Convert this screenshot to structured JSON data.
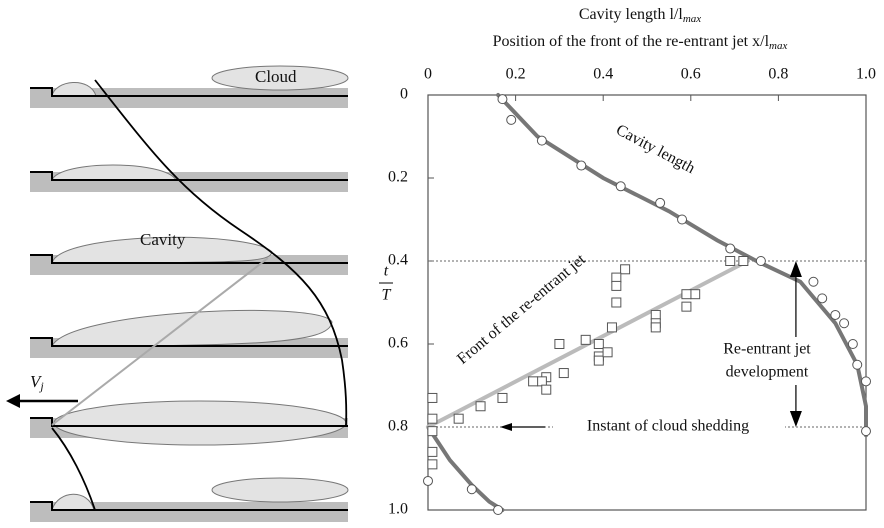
{
  "chart_data": {
    "type": "scatter",
    "title": {
      "text": "Cavity length l/l",
      "sub": "max"
    },
    "subtitle": {
      "text": "Position of the front of the re-entrant jet x/l",
      "sub": "max"
    },
    "ylabel": {
      "num": "t",
      "den": "T"
    },
    "xlim": [
      0,
      1
    ],
    "ylim": [
      0,
      1
    ],
    "y_inverted": true,
    "x_axis_position": "top",
    "xticks": [
      0,
      0.2,
      0.4,
      0.6,
      0.8,
      {
        "value": 1,
        "label": "1.0"
      }
    ],
    "yticks": [
      0,
      0.2,
      0.4,
      0.6,
      0.8,
      {
        "value": 1,
        "label": "1.0"
      }
    ],
    "hlines": [
      0.4,
      0.8
    ],
    "series": [
      {
        "mode": "line",
        "color": "#777777",
        "x": [
          0.16,
          0.25,
          0.4,
          0.55,
          0.66,
          0.75,
          0.85,
          0.93,
          0.98,
          1.0,
          1.0
        ],
        "values": [
          0.0,
          0.1,
          0.2,
          0.28,
          0.35,
          0.4,
          0.45,
          0.55,
          0.65,
          0.75,
          0.82
        ]
      },
      {
        "mode": "line",
        "color": "#777777",
        "x": [
          0.0,
          0.05,
          0.1,
          0.14,
          0.17
        ],
        "values": [
          0.8,
          0.88,
          0.94,
          0.98,
          1.0
        ]
      },
      {
        "mode": "line",
        "color": "#bbbbbb",
        "x": [
          0.73,
          0.0
        ],
        "values": [
          0.4,
          0.8
        ]
      },
      {
        "mode": "markers",
        "marker": "circle",
        "color": "#ffffff",
        "x": [
          0.17,
          0.19,
          0.26,
          0.35,
          0.44,
          0.53,
          0.58,
          0.69,
          0.76,
          0.88,
          0.9,
          0.93,
          0.95,
          0.97,
          0.98,
          1.0,
          1.0,
          0.0,
          0.1,
          0.16
        ],
        "values": [
          0.01,
          0.06,
          0.11,
          0.17,
          0.22,
          0.26,
          0.3,
          0.37,
          0.4,
          0.45,
          0.49,
          0.53,
          0.55,
          0.6,
          0.65,
          0.69,
          0.81,
          0.93,
          0.95,
          1.0
        ]
      },
      {
        "mode": "markers",
        "marker": "square",
        "color": "#ffffff",
        "x": [
          0.72,
          0.69,
          0.61,
          0.59,
          0.59,
          0.52,
          0.52,
          0.52,
          0.45,
          0.43,
          0.43,
          0.43,
          0.42,
          0.39,
          0.39,
          0.39,
          0.41,
          0.36,
          0.3,
          0.31,
          0.27,
          0.26,
          0.27,
          0.24,
          0.17,
          0.12,
          0.07,
          0.01,
          0.01,
          0.01,
          0.01,
          0.01
        ],
        "values": [
          0.4,
          0.4,
          0.48,
          0.48,
          0.51,
          0.53,
          0.55,
          0.56,
          0.42,
          0.44,
          0.46,
          0.5,
          0.56,
          0.6,
          0.63,
          0.64,
          0.62,
          0.59,
          0.6,
          0.67,
          0.68,
          0.69,
          0.71,
          0.69,
          0.73,
          0.75,
          0.78,
          0.73,
          0.78,
          0.81,
          0.86,
          0.89
        ]
      }
    ],
    "annotations": [
      "Cavity length",
      "Front of the re-entrant jet",
      "Re-entrant jet",
      "development",
      "Instant of cloud shedding"
    ]
  },
  "diagram": {
    "labels": [
      "Cloud",
      "Cavity"
    ],
    "velocity": {
      "text": "V",
      "sub": "j"
    }
  }
}
